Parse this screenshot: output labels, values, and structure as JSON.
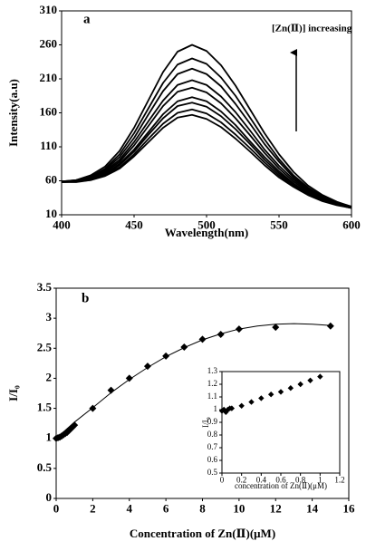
{
  "chart_data": [
    {
      "type": "line",
      "label": "a",
      "xlabel": "Wavelength(nm)",
      "ylabel": "Intensity(a.u)",
      "annotation": "[Zn(Ⅱ)] increasing",
      "xlim": [
        400,
        600
      ],
      "xticks": [
        400,
        450,
        500,
        550,
        600
      ],
      "ylim": [
        10,
        310
      ],
      "yticks": [
        10,
        60,
        110,
        160,
        210,
        260,
        310
      ],
      "x": [
        400,
        410,
        420,
        430,
        440,
        450,
        460,
        470,
        480,
        490,
        500,
        510,
        520,
        530,
        540,
        550,
        560,
        570,
        580,
        590,
        600
      ],
      "series": [
        {
          "color": "#000000",
          "values": [
            59,
            61,
            68,
            81,
            104,
            138,
            179,
            220,
            250,
            260,
            251,
            230,
            200,
            165,
            130,
            99,
            73,
            53,
            39,
            29,
            22
          ]
        },
        {
          "color": "#000000",
          "values": [
            59,
            61,
            66,
            78,
            99,
            130,
            167,
            204,
            231,
            240,
            232,
            212,
            185,
            153,
            121,
            92,
            68,
            50,
            37,
            28,
            22
          ]
        },
        {
          "color": "#000000",
          "values": [
            59,
            60,
            65,
            76,
            95,
            123,
            158,
            192,
            217,
            225,
            217,
            199,
            173,
            144,
            114,
            88,
            65,
            48,
            36,
            27,
            21
          ]
        },
        {
          "color": "#000000",
          "values": [
            59,
            60,
            64,
            74,
            91,
            117,
            148,
            178,
            201,
            208,
            201,
            184,
            161,
            134,
            106,
            82,
            62,
            46,
            35,
            26,
            21
          ]
        },
        {
          "color": "#000000",
          "values": [
            59,
            60,
            63,
            72,
            88,
            112,
            141,
            170,
            191,
            197,
            190,
            174,
            152,
            127,
            101,
            78,
            59,
            44,
            34,
            26,
            21
          ]
        },
        {
          "color": "#000000",
          "values": [
            59,
            59,
            63,
            70,
            85,
            106,
            132,
            158,
            177,
            183,
            177,
            162,
            142,
            118,
            95,
            74,
            56,
            42,
            33,
            25,
            20
          ]
        },
        {
          "color": "#000000",
          "values": [
            58,
            59,
            62,
            69,
            83,
            103,
            128,
            152,
            170,
            175,
            169,
            155,
            136,
            114,
            91,
            71,
            54,
            41,
            32,
            25,
            20
          ]
        },
        {
          "color": "#000000",
          "values": [
            58,
            59,
            61,
            68,
            80,
            99,
            122,
            144,
            160,
            165,
            159,
            146,
            128,
            108,
            87,
            68,
            52,
            40,
            31,
            25,
            20
          ]
        },
        {
          "color": "#000000",
          "values": [
            58,
            58,
            61,
            67,
            78,
            96,
            117,
            138,
            153,
            157,
            151,
            139,
            122,
            103,
            83,
            65,
            51,
            39,
            30,
            24,
            20
          ]
        }
      ]
    },
    {
      "type": "scatter",
      "label": "b",
      "xlabel": "Concentration of Zn(Ⅱ)(μM)",
      "ylabel": "I/I₀",
      "xlim": [
        0,
        16
      ],
      "xticks": [
        0,
        2,
        4,
        6,
        8,
        10,
        12,
        14,
        16
      ],
      "ylim": [
        0,
        3.5
      ],
      "yticks": [
        0,
        0.5,
        1,
        1.5,
        2,
        2.5,
        3,
        3.5
      ],
      "marker": "diamond",
      "series": [
        {
          "color": "#000000",
          "x": [
            0,
            0.1,
            0.2,
            0.3,
            0.4,
            0.5,
            0.6,
            0.7,
            0.8,
            0.9,
            1,
            2,
            3,
            4,
            5,
            6,
            7,
            8,
            9,
            10,
            12,
            15
          ],
          "values": [
            1,
            1.01,
            1.02,
            1.04,
            1.06,
            1.08,
            1.1,
            1.13,
            1.16,
            1.19,
            1.22,
            1.5,
            1.8,
            2.0,
            2.2,
            2.37,
            2.52,
            2.65,
            2.73,
            2.82,
            2.85,
            2.87
          ]
        }
      ],
      "fit": {
        "color": "#000000",
        "x": [
          0,
          1,
          2,
          3,
          4,
          5,
          6,
          7,
          8,
          9,
          10,
          11,
          12,
          13,
          14,
          15
        ],
        "values": [
          1.0,
          1.27,
          1.51,
          1.76,
          1.98,
          2.18,
          2.36,
          2.51,
          2.64,
          2.74,
          2.82,
          2.87,
          2.9,
          2.91,
          2.9,
          2.88
        ]
      }
    },
    {
      "type": "scatter",
      "xlabel": "concentration of Zn(Ⅱ)(μM)",
      "ylabel": "I/I₀",
      "xlim": [
        0,
        1.2
      ],
      "xticks": [
        0,
        0.2,
        0.4,
        0.6,
        0.8,
        1,
        1.2
      ],
      "ylim": [
        0.5,
        1.3
      ],
      "yticks": [
        0.5,
        0.6,
        0.7,
        0.8,
        0.9,
        1,
        1.1,
        1.2,
        1.3
      ],
      "marker": "diamond",
      "series": [
        {
          "color": "#000000",
          "x": [
            0,
            0.02,
            0.04,
            0.06,
            0.08,
            0.1,
            0.2,
            0.3,
            0.4,
            0.5,
            0.6,
            0.7,
            0.8,
            0.9,
            1.0
          ],
          "values": [
            0.99,
            1.0,
            0.98,
            1.0,
            1.01,
            1.01,
            1.03,
            1.06,
            1.09,
            1.12,
            1.14,
            1.17,
            1.2,
            1.23,
            1.26
          ]
        }
      ]
    }
  ]
}
